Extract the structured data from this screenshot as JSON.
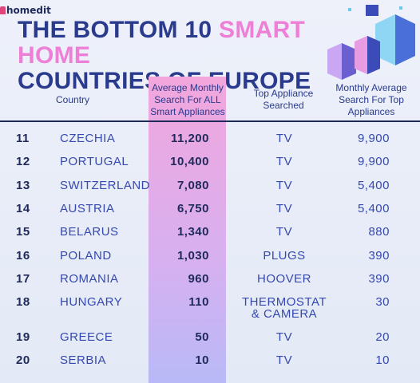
{
  "logo": "homedit",
  "title": {
    "part1": "THE BOTTOM 10 ",
    "highlight": "SMART HOME",
    "part2": "COUNTRIES OF EUROPE"
  },
  "table": {
    "header": [
      "Country",
      "Average Monthly Search For ALL Smart Appliances",
      "Top Appliance Searched",
      "Monthly Average Search For Top Appliances"
    ],
    "rows": [
      [
        "11",
        "CZECHIA",
        "11,200",
        "TV",
        "9,900"
      ],
      [
        "12",
        "PORTUGAL",
        "10,400",
        "TV",
        "9,900"
      ],
      [
        "13",
        "SWITZERLAND",
        "7,080",
        "TV",
        "5,400"
      ],
      [
        "14",
        "AUSTRIA",
        "6,750",
        "TV",
        "5,400"
      ],
      [
        "15",
        "BELARUS",
        "1,340",
        "TV",
        "880"
      ],
      [
        "16",
        "POLAND",
        "1,030",
        "PLUGS",
        "390"
      ],
      [
        "17",
        "ROMANIA",
        "960",
        "HOOVER",
        "390"
      ],
      [
        "18",
        "HUNGARY",
        "110",
        "THERMOSTAT & CAMERA",
        "30"
      ],
      [
        "19",
        "GREECE",
        "50",
        "TV",
        "20"
      ],
      [
        "20",
        "SERBIA",
        "10",
        "TV",
        "10"
      ]
    ]
  }
}
